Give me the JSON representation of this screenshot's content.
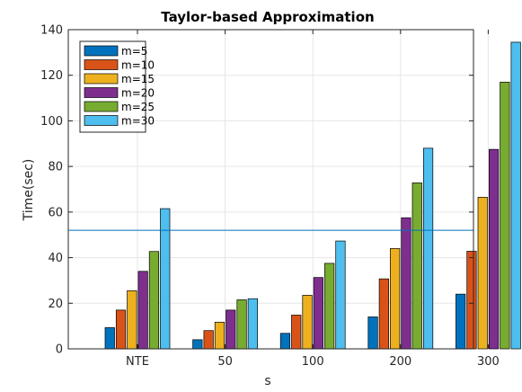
{
  "chart_data": {
    "type": "bar",
    "title": "Taylor-based Approximation",
    "xlabel": "s",
    "ylabel": "Time(sec)",
    "ylim": [
      0,
      140
    ],
    "yticks": [
      0,
      20,
      40,
      60,
      80,
      100,
      120,
      140
    ],
    "grid": true,
    "legend_position": "top-left",
    "categories": [
      "NTE",
      "50",
      "100",
      "200",
      "300"
    ],
    "series": [
      {
        "name": "m=5",
        "color": "#0072BD",
        "values": [
          9.3,
          4.0,
          6.8,
          14.0,
          24.0
        ]
      },
      {
        "name": "m=10",
        "color": "#D95319",
        "values": [
          17.0,
          8.0,
          14.8,
          30.7,
          42.8
        ]
      },
      {
        "name": "m=15",
        "color": "#EDB120",
        "values": [
          25.5,
          11.7,
          23.5,
          44.0,
          66.5
        ]
      },
      {
        "name": "m=20",
        "color": "#7E2F8E",
        "values": [
          34.0,
          17.0,
          31.3,
          57.5,
          87.5
        ]
      },
      {
        "name": "m=25",
        "color": "#77AC30",
        "values": [
          42.7,
          21.5,
          37.5,
          72.8,
          117.0
        ]
      },
      {
        "name": "m=30",
        "color": "#4DBEEE",
        "values": [
          61.5,
          22.0,
          47.3,
          88.0,
          134.5
        ]
      }
    ],
    "reference_line": {
      "y": 52,
      "color": "#0072BD"
    }
  }
}
